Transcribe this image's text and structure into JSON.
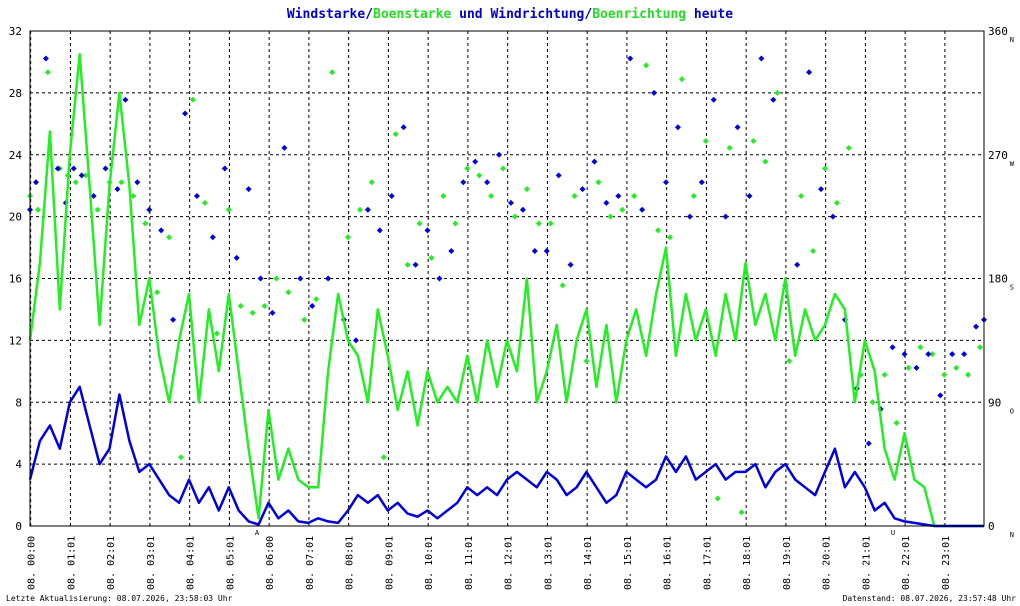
{
  "colors": {
    "wind": "#0000dd",
    "gust": "#22ee22",
    "grid": "#000000",
    "marker_red": "#cc0000",
    "background": "#ffffff"
  },
  "title": {
    "part1": "Windstarke",
    "sep1": "/",
    "part2": "Boenstarke",
    "part3": " und ",
    "part4": "Windrichtung",
    "sep2": "/",
    "part5": "Boenrichtung",
    "part6": " heute"
  },
  "footer": {
    "left": "Letzte Aktualisierung: 08.07.2026, 23:58:03 Uhr",
    "right": "Datenstand: 08.07.2026, 23:57:48 Uhr"
  },
  "markers": {
    "a": "A",
    "u": "U"
  },
  "chart_data": {
    "type": "line",
    "title": "Windstarke/Boenstarke und Windrichtung/Boenrichtung heute",
    "x_ticks": [
      "08. 00:00",
      "08. 01:01",
      "08. 02:01",
      "08. 03:01",
      "08. 04:01",
      "08. 05:01",
      "08. 06:00",
      "08. 07:01",
      "08. 08:01",
      "08. 09:01",
      "08. 10:01",
      "08. 11:01",
      "08. 12:01",
      "08. 13:01",
      "08. 14:01",
      "08. 15:01",
      "08. 16:01",
      "08. 17:01",
      "08. 18:01",
      "08. 19:01",
      "08. 20:01",
      "08. 21:01",
      "08. 22:01",
      "08. 23:01"
    ],
    "y_left": {
      "ticks": [
        "0",
        "4",
        "8",
        "12",
        "16",
        "20",
        "24",
        "28",
        "32"
      ],
      "range": [
        0,
        32
      ]
    },
    "y_right": {
      "range": [
        0,
        360
      ],
      "ticks": [
        {
          "value": 0,
          "label": "0",
          "dir": "N"
        },
        {
          "value": 90,
          "label": "90",
          "dir": "O"
        },
        {
          "value": 180,
          "label": "180",
          "dir": "S"
        },
        {
          "value": 270,
          "label": "270",
          "dir": "W"
        },
        {
          "value": 360,
          "label": "360",
          "dir": "N"
        }
      ]
    },
    "x_range_hours": [
      0,
      24
    ],
    "series": [
      {
        "key": "wind",
        "name": "Windstarke",
        "x_hours": [
          0,
          0.25,
          0.5,
          0.75,
          1,
          1.25,
          1.5,
          1.75,
          2,
          2.25,
          2.5,
          2.75,
          3,
          3.25,
          3.5,
          3.75,
          4,
          4.25,
          4.5,
          4.75,
          5,
          5.25,
          5.5,
          5.75,
          6,
          6.25,
          6.5,
          6.75,
          7,
          7.25,
          7.5,
          7.75,
          8,
          8.25,
          8.5,
          8.75,
          9,
          9.25,
          9.5,
          9.75,
          10,
          10.25,
          10.5,
          10.75,
          11,
          11.25,
          11.5,
          11.75,
          12,
          12.25,
          12.5,
          12.75,
          13,
          13.25,
          13.5,
          13.75,
          14,
          14.25,
          14.5,
          14.75,
          15,
          15.25,
          15.5,
          15.75,
          16,
          16.25,
          16.5,
          16.75,
          17,
          17.25,
          17.5,
          17.75,
          18,
          18.25,
          18.5,
          18.75,
          19,
          19.25,
          19.5,
          19.75,
          20,
          20.25,
          20.5,
          20.75,
          21,
          21.25,
          21.5,
          21.75,
          22,
          22.25,
          22.5,
          22.75,
          23,
          23.25,
          23.5,
          23.75,
          24
        ],
        "values": [
          3.0,
          5.5,
          6.5,
          5.0,
          8.0,
          9.0,
          6.5,
          4.0,
          5.0,
          8.5,
          5.5,
          3.5,
          4.0,
          3.0,
          2.0,
          1.5,
          3.0,
          1.5,
          2.5,
          1.0,
          2.5,
          1.0,
          0.3,
          0.1,
          1.5,
          0.5,
          1.0,
          0.3,
          0.2,
          0.5,
          0.3,
          0.2,
          1.0,
          2.0,
          1.5,
          2.0,
          1.0,
          1.5,
          0.8,
          0.6,
          1.0,
          0.5,
          1.0,
          1.5,
          2.5,
          2.0,
          2.5,
          2.0,
          3.0,
          3.5,
          3.0,
          2.5,
          3.5,
          3.0,
          2.0,
          2.5,
          3.5,
          2.5,
          1.5,
          2.0,
          3.5,
          3.0,
          2.5,
          3.0,
          4.5,
          3.5,
          4.5,
          3.0,
          3.5,
          4.0,
          3.0,
          3.5,
          3.5,
          4.0,
          2.5,
          3.5,
          4.0,
          3.0,
          2.5,
          2.0,
          3.5,
          5.0,
          2.5,
          3.5,
          2.5,
          1.0,
          1.5,
          0.5,
          0.3,
          0.2,
          0.1,
          0.0,
          0.0,
          0.0,
          0.0,
          0.0,
          0.0
        ]
      },
      {
        "key": "gust",
        "name": "Boenstarke",
        "x_hours": [
          0,
          0.25,
          0.5,
          0.75,
          1,
          1.25,
          1.5,
          1.75,
          2,
          2.25,
          2.5,
          2.75,
          3,
          3.25,
          3.5,
          3.75,
          4,
          4.25,
          4.5,
          4.75,
          5,
          5.25,
          5.5,
          5.75,
          6,
          6.25,
          6.5,
          6.75,
          7,
          7.25,
          7.5,
          7.75,
          8,
          8.25,
          8.5,
          8.75,
          9,
          9.25,
          9.5,
          9.75,
          10,
          10.25,
          10.5,
          10.75,
          11,
          11.25,
          11.5,
          11.75,
          12,
          12.25,
          12.5,
          12.75,
          13,
          13.25,
          13.5,
          13.75,
          14,
          14.25,
          14.5,
          14.75,
          15,
          15.25,
          15.5,
          15.75,
          16,
          16.25,
          16.5,
          16.75,
          17,
          17.25,
          17.5,
          17.75,
          18,
          18.25,
          18.5,
          18.75,
          19,
          19.25,
          19.5,
          19.75,
          20,
          20.25,
          20.5,
          20.75,
          21,
          21.25,
          21.5,
          21.75,
          22,
          22.25,
          22.5,
          22.75,
          23,
          23.25,
          23.5,
          23.75,
          24
        ],
        "values": [
          12,
          17,
          25.5,
          14,
          24,
          30.5,
          22,
          13,
          22,
          28,
          22,
          13,
          16,
          11,
          8,
          12,
          15,
          8,
          14,
          10,
          15,
          10,
          5,
          0.5,
          7.5,
          3,
          5,
          3,
          2.5,
          2.5,
          10,
          15,
          12,
          11,
          8,
          14,
          11,
          7.5,
          10,
          6.5,
          10,
          8,
          9,
          8,
          11,
          8,
          12,
          9,
          12,
          10,
          16,
          8,
          10,
          13,
          8,
          12,
          14,
          9,
          13,
          8,
          12,
          14,
          11,
          15,
          18,
          11,
          15,
          12,
          14,
          11,
          15,
          12,
          17,
          13,
          15,
          12,
          16,
          11,
          14,
          12,
          13,
          15,
          14,
          8,
          12,
          10,
          5,
          3,
          6,
          3,
          2.5,
          0,
          0,
          0,
          0,
          0,
          0
        ]
      },
      {
        "key": "wind_dir",
        "name": "Windrichtung",
        "x_hours": [
          0,
          0.15,
          0.4,
          0.7,
          0.9,
          1.1,
          1.3,
          1.6,
          1.9,
          2.2,
          2.4,
          2.7,
          3.0,
          3.3,
          3.6,
          3.9,
          4.2,
          4.6,
          4.9,
          5.2,
          5.5,
          5.8,
          6.1,
          6.4,
          6.8,
          7.1,
          7.5,
          7.9,
          8.2,
          8.5,
          8.8,
          9.1,
          9.4,
          9.7,
          10.0,
          10.3,
          10.6,
          10.9,
          11.2,
          11.5,
          11.8,
          12.1,
          12.4,
          12.7,
          13.0,
          13.3,
          13.6,
          13.9,
          14.2,
          14.5,
          14.8,
          15.1,
          15.4,
          15.7,
          16.0,
          16.3,
          16.6,
          16.9,
          17.2,
          17.5,
          17.8,
          18.1,
          18.4,
          18.7,
          19.0,
          19.3,
          19.6,
          19.9,
          20.2,
          20.5,
          20.8,
          21.1,
          21.4,
          21.7,
          22.0,
          22.3,
          22.6,
          22.9,
          23.2,
          23.5,
          23.8,
          24.0
        ],
        "values": [
          230,
          250,
          340,
          260,
          235,
          260,
          255,
          240,
          260,
          245,
          310,
          250,
          230,
          215,
          150,
          300,
          240,
          210,
          260,
          195,
          245,
          180,
          155,
          275,
          180,
          160,
          180,
          150,
          135,
          230,
          215,
          240,
          290,
          190,
          215,
          180,
          200,
          250,
          265,
          250,
          270,
          235,
          230,
          200,
          200,
          255,
          190,
          245,
          265,
          235,
          240,
          340,
          230,
          315,
          250,
          290,
          225,
          250,
          310,
          225,
          290,
          240,
          340,
          310,
          175,
          190,
          330,
          245,
          225,
          150,
          100,
          60,
          85,
          130,
          125,
          115,
          125,
          95,
          125,
          125,
          145,
          150
        ]
      },
      {
        "key": "gust_dir",
        "name": "Boenrichtung",
        "x_hours": [
          0,
          0.2,
          0.45,
          0.75,
          0.95,
          1.15,
          1.4,
          1.7,
          2.0,
          2.3,
          2.6,
          2.9,
          3.2,
          3.5,
          3.8,
          4.1,
          4.4,
          4.7,
          5.0,
          5.3,
          5.6,
          5.9,
          6.2,
          6.5,
          6.9,
          7.2,
          7.6,
          8.0,
          8.3,
          8.6,
          8.9,
          9.2,
          9.5,
          9.8,
          10.1,
          10.4,
          10.7,
          11.0,
          11.3,
          11.6,
          11.9,
          12.2,
          12.5,
          12.8,
          13.1,
          13.4,
          13.7,
          14.0,
          14.3,
          14.6,
          14.9,
          15.2,
          15.5,
          15.8,
          16.1,
          16.4,
          16.7,
          17.0,
          17.3,
          17.6,
          17.9,
          18.2,
          18.5,
          18.8,
          19.1,
          19.4,
          19.7,
          20.0,
          20.3,
          20.6,
          20.9,
          21.2,
          21.5,
          21.8,
          22.1,
          22.4,
          22.7,
          23.0,
          23.3,
          23.6,
          23.9
        ],
        "values": [
          240,
          230,
          330,
          260,
          255,
          250,
          255,
          230,
          250,
          250,
          240,
          220,
          170,
          210,
          50,
          310,
          235,
          140,
          230,
          160,
          155,
          160,
          180,
          170,
          150,
          165,
          330,
          210,
          230,
          250,
          50,
          285,
          190,
          220,
          195,
          240,
          220,
          260,
          255,
          240,
          260,
          225,
          245,
          220,
          220,
          175,
          240,
          120,
          250,
          225,
          230,
          240,
          335,
          215,
          210,
          325,
          240,
          280,
          20,
          275,
          10,
          280,
          265,
          315,
          120,
          240,
          200,
          260,
          235,
          275,
          110,
          90,
          110,
          75,
          115,
          130,
          125,
          110,
          115,
          110,
          130
        ]
      }
    ]
  }
}
